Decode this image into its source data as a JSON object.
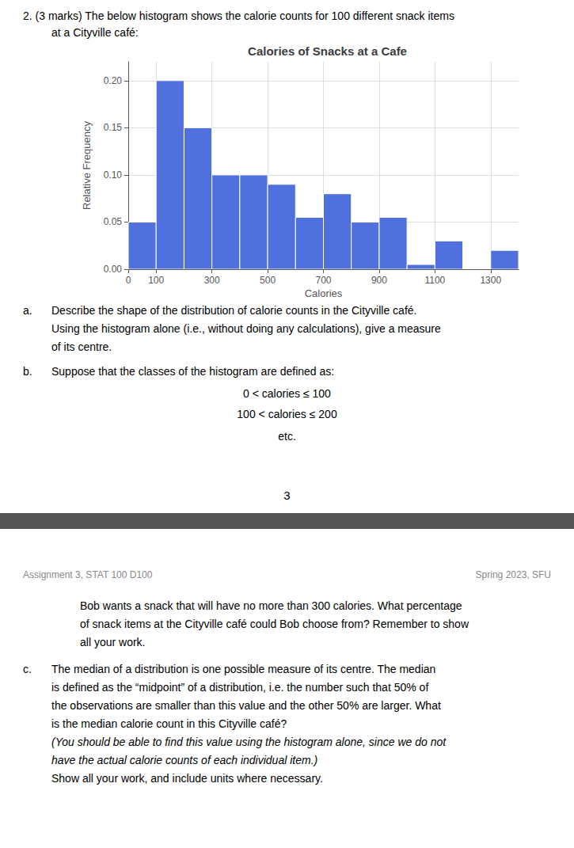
{
  "chart_data": {
    "type": "histogram",
    "title": "Calories of Snacks at a Cafe",
    "xlabel": "Calories",
    "ylabel": "Relative Frequency",
    "bins": [
      0,
      100,
      200,
      300,
      400,
      500,
      600,
      700,
      800,
      900,
      1000,
      1100,
      1200,
      1300,
      1400
    ],
    "values": [
      0.05,
      0.2,
      0.15,
      0.1,
      0.1,
      0.09,
      0.055,
      0.08,
      0.05,
      0.055,
      0.005,
      0.03,
      0.0,
      0.02
    ],
    "xlim": [
      0,
      1400
    ],
    "xticks": [
      0,
      100,
      300,
      500,
      700,
      900,
      1100,
      1300
    ],
    "ylim": [
      0.0,
      0.22
    ],
    "yticks": [
      {
        "value": 0.0,
        "label": "0.00"
      },
      0.05,
      {
        "value": 0.1,
        "label": "0.10"
      },
      0.15,
      {
        "value": 0.2,
        "label": "0.20"
      }
    ],
    "grid": true,
    "annotations": [
      "2. (3 marks) The below histogram shows the calorie counts for 100 different snack items",
      "at a Cityville café:",
      "a.",
      "Describe the shape of the distribution of calorie counts in the Cityville café.",
      "Using the histogram alone (i.e., without doing any calculations), give a measure",
      "of its centre.",
      "b.",
      "Suppose that the classes of the histogram are defined as:",
      "0 < calories ≤ 100",
      "100 < calories ≤ 200",
      "etc.",
      "3",
      "Assignment 3, STAT 100 D100",
      "Spring 2023, SFU",
      "Bob wants a snack that will have no more than 300 calories. What percentage",
      "of snack items at the Cityville café could Bob choose from? Remember to show",
      "all your work.",
      "c.",
      "The median of a distribution is one possible measure of its centre. The median",
      "is defined as the “midpoint” of a distribution, i.e. the number such that 50% of",
      "the observations are smaller than this value and the other 50% are larger. What",
      "is the median calorie count in this Cityville café?",
      "(You should be able to find this value using the histogram alone, since we do not",
      "have the actual calorie counts of each individual item.)",
      "Show all your work, and include units where necessary."
    ]
  }
}
